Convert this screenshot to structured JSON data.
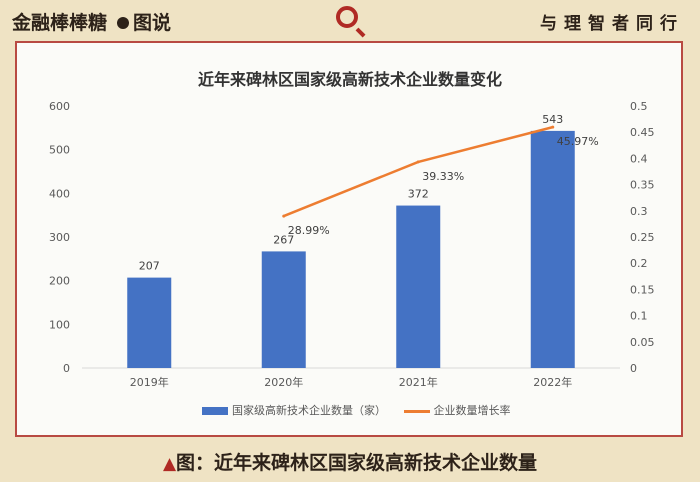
{
  "header": {
    "brand": "金融棒棒糖",
    "section": "图说",
    "slogan": "与理智者同行"
  },
  "caption": {
    "marker": "▲",
    "text": "图：近年来碑林区国家级高新技术企业数量"
  },
  "colors": {
    "bar": "#4472c4",
    "line": "#ed7d31",
    "frame": "#b84a42",
    "accent": "#b02a24"
  },
  "icons": {
    "magnifier": "magnifier-icon"
  },
  "chart_data": {
    "type": "bar",
    "title": "近年来碑林区国家级高新技术企业数量变化",
    "categories": [
      "2019年",
      "2020年",
      "2021年",
      "2022年"
    ],
    "series": [
      {
        "name": "国家级高新技术企业数量（家）",
        "type": "bar",
        "axis": "left",
        "values": [
          207,
          267,
          372,
          543
        ],
        "labels": [
          "207",
          "267",
          "372",
          "543"
        ]
      },
      {
        "name": "企业数量增长率",
        "type": "line",
        "axis": "right",
        "values": [
          null,
          0.2899,
          0.3933,
          0.4597
        ],
        "labels": [
          "",
          "28.99%",
          "39.33%",
          "45.97%"
        ]
      }
    ],
    "y_left": {
      "min": 0,
      "max": 600,
      "ticks": [
        "0",
        "100",
        "200",
        "300",
        "400",
        "500",
        "600"
      ]
    },
    "y_right": {
      "min": 0,
      "max": 0.5,
      "ticks": [
        "0",
        "0.05",
        "0.1",
        "0.15",
        "0.2",
        "0.25",
        "0.3",
        "0.35",
        "0.4",
        "0.45",
        "0.5"
      ]
    },
    "grid": false,
    "legend": "bottom"
  }
}
